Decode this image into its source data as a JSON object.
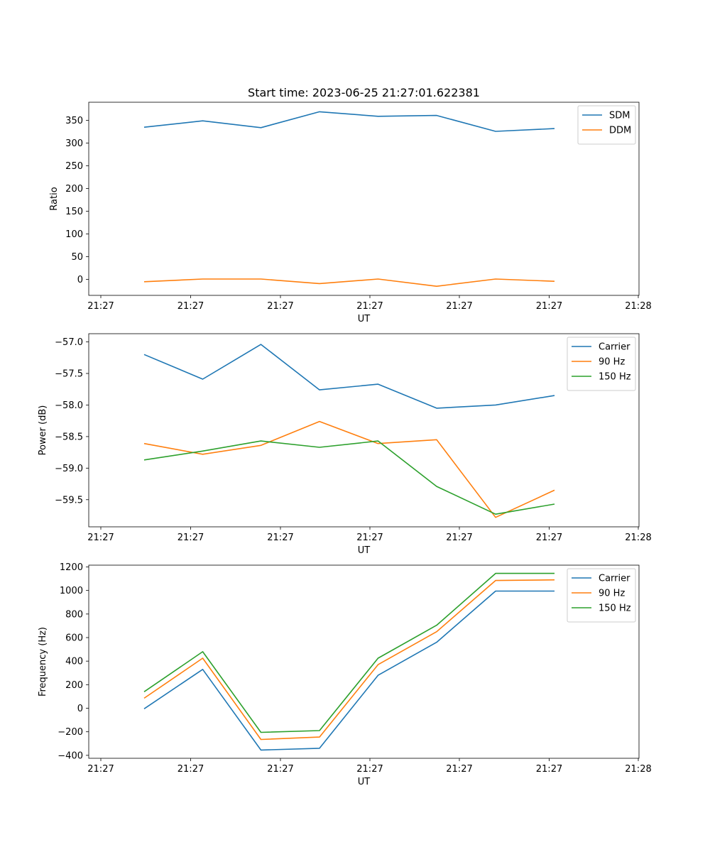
{
  "figure": {
    "title": "Start time: 2023-06-25 21:27:01.622381"
  },
  "chart_data": [
    {
      "type": "line",
      "xlabel": "UT",
      "ylabel": "Ratio",
      "x_tick_labels": [
        "21:27",
        "21:27",
        "21:27",
        "21:27",
        "21:27",
        "21:27",
        "21:28"
      ],
      "ylim": [
        -35,
        390
      ],
      "y_ticks": [
        0,
        50,
        100,
        150,
        200,
        250,
        300,
        350
      ],
      "legend_position": "top-right",
      "series": [
        {
          "name": "SDM",
          "color": "#1f77b4",
          "values": [
            335,
            349,
            334,
            369,
            359,
            361,
            326,
            332
          ]
        },
        {
          "name": "DDM",
          "color": "#ff7f0e",
          "values": [
            -5,
            1,
            1,
            -9,
            1,
            -15,
            1,
            -4
          ]
        }
      ]
    },
    {
      "type": "line",
      "xlabel": "UT",
      "ylabel": "Power (dB)",
      "x_tick_labels": [
        "21:27",
        "21:27",
        "21:27",
        "21:27",
        "21:27",
        "21:27",
        "21:28"
      ],
      "ylim": [
        -59.93,
        -56.87
      ],
      "y_ticks": [
        -59.5,
        -59.0,
        -58.5,
        -58.0,
        -57.5,
        -57.0
      ],
      "y_tick_labels": [
        "−59.5",
        "−59.0",
        "−58.5",
        "−58.0",
        "−57.5",
        "−57.0"
      ],
      "legend_position": "top-right",
      "series": [
        {
          "name": "Carrier",
          "color": "#1f77b4",
          "values": [
            -57.2,
            -57.59,
            -57.04,
            -57.76,
            -57.67,
            -58.05,
            -58.0,
            -57.85
          ]
        },
        {
          "name": "90 Hz",
          "color": "#ff7f0e",
          "values": [
            -58.61,
            -58.78,
            -58.64,
            -58.26,
            -58.61,
            -58.55,
            -59.78,
            -59.35
          ]
        },
        {
          "name": "150 Hz",
          "color": "#2ca02c",
          "values": [
            -58.87,
            -58.73,
            -58.57,
            -58.67,
            -58.57,
            -59.29,
            -59.73,
            -59.57
          ]
        }
      ]
    },
    {
      "type": "line",
      "xlabel": "UT",
      "ylabel": "Frequency (Hz)",
      "x_tick_labels": [
        "21:27",
        "21:27",
        "21:27",
        "21:27",
        "21:27",
        "21:27",
        "21:28"
      ],
      "ylim": [
        -425,
        1215
      ],
      "y_ticks": [
        -400,
        -200,
        0,
        200,
        400,
        600,
        800,
        1000,
        1200
      ],
      "y_tick_labels": [
        "−400",
        "−200",
        "0",
        "200",
        "400",
        "600",
        "800",
        "1000",
        "1200"
      ],
      "legend_position": "top-right",
      "series": [
        {
          "name": "Carrier",
          "color": "#1f77b4",
          "values": [
            -5,
            330,
            -355,
            -340,
            280,
            560,
            995,
            995
          ]
        },
        {
          "name": "90 Hz",
          "color": "#ff7f0e",
          "values": [
            85,
            425,
            -265,
            -245,
            370,
            650,
            1085,
            1090
          ]
        },
        {
          "name": "150 Hz",
          "color": "#2ca02c",
          "values": [
            140,
            480,
            -205,
            -190,
            425,
            705,
            1145,
            1145
          ]
        }
      ]
    }
  ]
}
